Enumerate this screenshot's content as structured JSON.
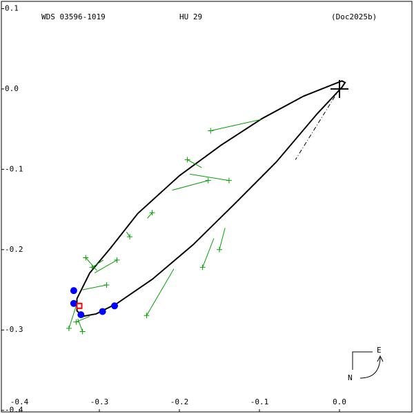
{
  "chart_data": {
    "type": "orbit",
    "title_left": "WDS 03596-1019",
    "title_center": "HU  29",
    "title_right": "(Doc2025b)",
    "compass": {
      "north": "N",
      "east": "E"
    },
    "xlim": [
      -0.4224,
      0.0905
    ],
    "ylim": [
      -0.402,
      0.109
    ],
    "xticks": [
      -0.4,
      -0.3,
      -0.2,
      -0.1,
      {
        "value": 0,
        "label": "0.0"
      }
    ],
    "yticks": [
      0.1,
      {
        "value": 0,
        "label": "0.0"
      },
      -0.1,
      -0.2,
      -0.3,
      -0.4
    ],
    "primary": {
      "x": 0,
      "y": 0
    },
    "orbit": {
      "color": "#000000",
      "x": [
        0.003,
        -0.045,
        -0.097,
        -0.148,
        -0.2,
        -0.252,
        -0.286,
        -0.312,
        -0.328,
        -0.328,
        -0.321,
        -0.304,
        -0.278,
        -0.234,
        -0.183,
        -0.131,
        -0.079,
        -0.028,
        0.003,
        0.007
      ],
      "y": [
        0.01,
        -0.009,
        -0.037,
        -0.07,
        -0.108,
        -0.155,
        -0.198,
        -0.229,
        -0.261,
        -0.276,
        -0.283,
        -0.28,
        -0.267,
        -0.237,
        -0.194,
        -0.143,
        -0.091,
        -0.031,
        0.002,
        0.008
      ]
    },
    "node_line": {
      "x": [
        0,
        -0.055
      ],
      "y": [
        0,
        -0.088
      ]
    },
    "observations": {
      "color": "#00a000",
      "x": [
        -0.161,
        -0.19,
        -0.138,
        -0.164,
        -0.234,
        -0.262,
        -0.171,
        -0.15,
        -0.317,
        -0.309,
        -0.278,
        -0.291,
        -0.241,
        -0.338,
        -0.329,
        -0.321
      ],
      "y": [
        -0.052,
        -0.088,
        -0.114,
        -0.114,
        -0.154,
        -0.184,
        -0.222,
        -0.2,
        -0.21,
        -0.222,
        -0.213,
        -0.244,
        -0.282,
        -0.298,
        -0.29,
        -0.302
      ],
      "pred_x": [
        -0.098,
        -0.172,
        -0.187,
        -0.209,
        -0.24,
        -0.266,
        -0.157,
        -0.143,
        -0.303,
        -0.295,
        -0.306,
        -0.321,
        -0.207,
        -0.328,
        -0.312,
        -0.327
      ],
      "pred_y": [
        -0.038,
        -0.098,
        -0.106,
        -0.126,
        -0.161,
        -0.178,
        -0.186,
        -0.173,
        -0.226,
        -0.213,
        -0.229,
        -0.25,
        -0.224,
        -0.267,
        -0.283,
        -0.286
      ]
    },
    "interferometric": {
      "color": "#0000ff",
      "x": [
        -0.332,
        -0.332,
        -0.323,
        -0.296,
        -0.281
      ],
      "y": [
        -0.251,
        -0.267,
        -0.281,
        -0.277,
        -0.27
      ]
    },
    "current": {
      "color": "#ff0000",
      "x": -0.325,
      "y": -0.27
    }
  }
}
